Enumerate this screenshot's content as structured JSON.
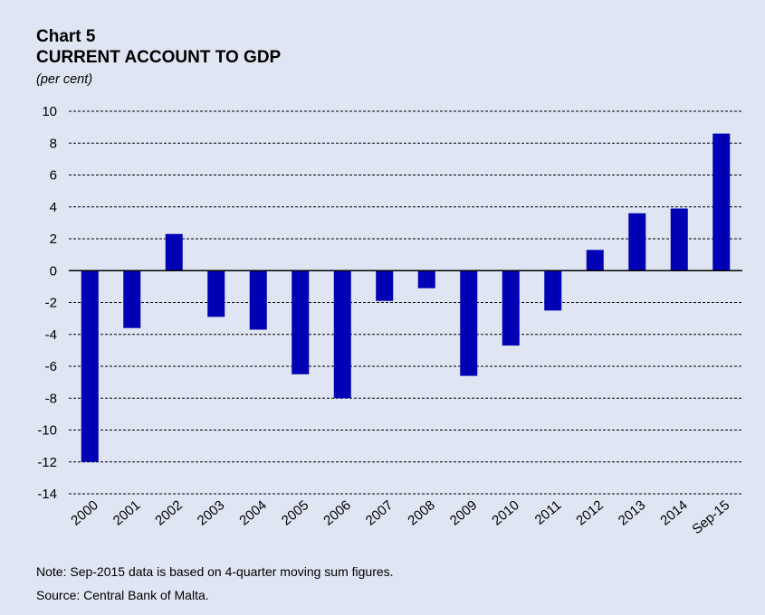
{
  "header": {
    "chart_number": "Chart 5",
    "title": "CURRENT ACCOUNT TO GDP",
    "unit": "(per cent)"
  },
  "footer": {
    "note": "Note: Sep-2015 data is based on 4-quarter moving sum figures.",
    "source": "Source: Central Bank of Malta."
  },
  "colors": {
    "background": "#dfe5f2",
    "bar": "#0000b4",
    "grid": "#000000"
  },
  "chart_data": {
    "type": "bar",
    "title": "CURRENT ACCOUNT TO GDP",
    "ylabel": "(per cent)",
    "xlabel": "",
    "categories": [
      "2000",
      "2001",
      "2002",
      "2003",
      "2004",
      "2005",
      "2006",
      "2007",
      "2008",
      "2009",
      "2010",
      "2011",
      "2012",
      "2013",
      "2014",
      "Sep-15"
    ],
    "values": [
      -12.0,
      -3.6,
      2.3,
      -2.9,
      -3.7,
      -6.5,
      -8.0,
      -1.9,
      -1.1,
      -6.6,
      -4.7,
      -2.5,
      1.3,
      3.6,
      3.9,
      8.6
    ],
    "ylim": [
      -14,
      10
    ],
    "yticks": [
      10,
      8,
      6,
      4,
      2,
      0,
      -2,
      -4,
      -6,
      -8,
      -10,
      -12,
      -14
    ],
    "grid": "horizontal dashed",
    "legend": "none"
  }
}
